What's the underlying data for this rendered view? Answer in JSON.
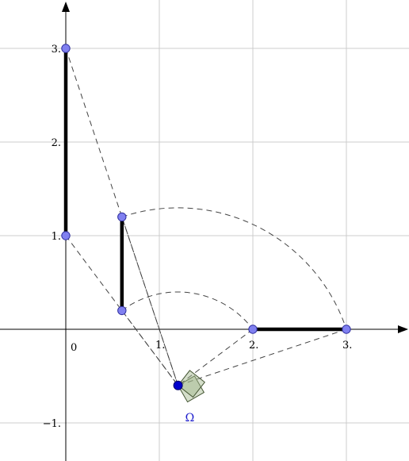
{
  "axes": {
    "origin_label": "0",
    "x_tick_labels": [
      {
        "value": 1,
        "text": "1."
      },
      {
        "value": 2,
        "text": "2."
      },
      {
        "value": 3,
        "text": "3."
      }
    ],
    "y_tick_labels": [
      {
        "value": 3,
        "text": "3."
      },
      {
        "value": 2,
        "text": "2."
      },
      {
        "value": 1,
        "text": "1."
      },
      {
        "value": -1,
        "text": "−1."
      }
    ],
    "grid": true,
    "x_range": [
      -0.7,
      3.6
    ],
    "y_range": [
      -1.4,
      3.5
    ]
  },
  "segments": [
    {
      "name": "segment-on-y-axis",
      "from": [
        0,
        1
      ],
      "to": [
        0,
        3
      ]
    },
    {
      "name": "middle-vertical-segment",
      "from": [
        0.6,
        0.2
      ],
      "to": [
        0.6,
        1.2
      ]
    },
    {
      "name": "segment-on-x-axis",
      "from": [
        2,
        0
      ],
      "to": [
        3,
        0
      ]
    }
  ],
  "points": [
    {
      "name": "point-0-3",
      "x": 0,
      "y": 3
    },
    {
      "name": "point-0-1",
      "x": 0,
      "y": 1
    },
    {
      "name": "point-06-12",
      "x": 0.6,
      "y": 1.2
    },
    {
      "name": "point-06-02",
      "x": 0.6,
      "y": 0.2
    },
    {
      "name": "point-2-0",
      "x": 2,
      "y": 0
    },
    {
      "name": "point-3-0",
      "x": 3,
      "y": 0
    }
  ],
  "center": {
    "x": 1.2,
    "y": -0.6,
    "label": "Ω"
  },
  "colors": {
    "point_fill": "#8080f0",
    "point_stroke": "#3030a0",
    "center_fill": "#0000cc",
    "center_label": "#1a1acc",
    "grid": "#cccccc",
    "square_fill": "#9fb58a",
    "square_stroke": "#445533"
  }
}
